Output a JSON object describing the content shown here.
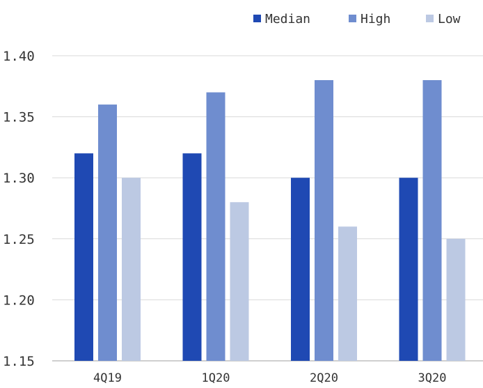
{
  "chart_data": {
    "type": "bar",
    "categories": [
      "4Q19",
      "1Q20",
      "2Q20",
      "3Q20"
    ],
    "series": [
      {
        "name": "Median",
        "values": [
          1.32,
          1.32,
          1.3,
          1.3
        ],
        "color": "#1f49b3"
      },
      {
        "name": "High",
        "values": [
          1.36,
          1.37,
          1.38,
          1.38
        ],
        "color": "#6f8dcf"
      },
      {
        "name": "Low",
        "values": [
          1.3,
          1.28,
          1.26,
          1.25
        ],
        "color": "#bcc9e3"
      }
    ],
    "yticks": [
      "1.40",
      "1.35",
      "1.30",
      "1.25",
      "1.20",
      "1.15"
    ],
    "ylim": [
      1.15,
      1.4
    ],
    "grid": true,
    "legend_position": "top-right",
    "title": "",
    "xlabel": "",
    "ylabel": ""
  }
}
